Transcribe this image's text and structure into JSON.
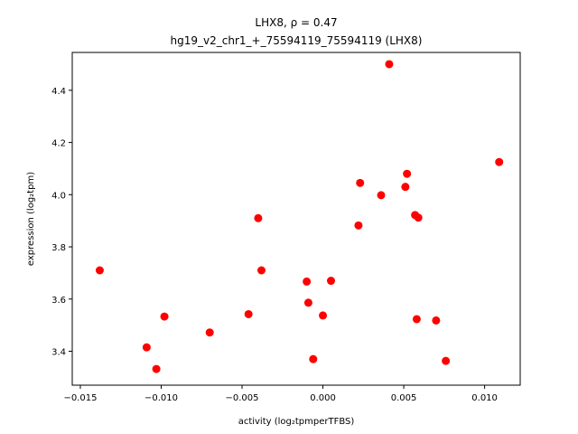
{
  "chart_data": {
    "type": "scatter",
    "title_line1": "LHX8, ρ = 0.47",
    "title_line2": "hg19_v2_chr1_+_75594119_75594119 (LHX8)",
    "xlabel": "activity (log₂tpmperTFBS)",
    "ylabel": "expression (log₂tpm)",
    "xlim": [
      -0.0155,
      0.0122
    ],
    "ylim": [
      3.27,
      4.545
    ],
    "xticks": [
      -0.015,
      -0.01,
      -0.005,
      0.0,
      0.005,
      0.01
    ],
    "xtick_labels": [
      "−0.015",
      "−0.010",
      "−0.005",
      "0.000",
      "0.005",
      "0.010"
    ],
    "yticks": [
      3.4,
      3.6,
      3.8,
      4.0,
      4.2,
      4.4
    ],
    "ytick_labels": [
      "3.4",
      "3.6",
      "3.8",
      "4.0",
      "4.2",
      "4.4"
    ],
    "grid": false,
    "marker_color": "#ff0000",
    "points": [
      {
        "x": -0.0138,
        "y": 3.71
      },
      {
        "x": -0.0109,
        "y": 3.415
      },
      {
        "x": -0.0103,
        "y": 3.332
      },
      {
        "x": -0.0098,
        "y": 3.533
      },
      {
        "x": -0.007,
        "y": 3.472
      },
      {
        "x": -0.0046,
        "y": 3.542
      },
      {
        "x": -0.004,
        "y": 3.91
      },
      {
        "x": -0.0038,
        "y": 3.71
      },
      {
        "x": -0.001,
        "y": 3.667
      },
      {
        "x": -0.0009,
        "y": 3.586
      },
      {
        "x": -0.0006,
        "y": 3.37
      },
      {
        "x": 0.0,
        "y": 3.537
      },
      {
        "x": 0.0005,
        "y": 3.67
      },
      {
        "x": 0.0022,
        "y": 3.882
      },
      {
        "x": 0.0023,
        "y": 4.045
      },
      {
        "x": 0.0036,
        "y": 3.998
      },
      {
        "x": 0.0041,
        "y": 4.5
      },
      {
        "x": 0.0051,
        "y": 4.03
      },
      {
        "x": 0.0052,
        "y": 4.08
      },
      {
        "x": 0.0057,
        "y": 3.922
      },
      {
        "x": 0.0058,
        "y": 3.523
      },
      {
        "x": 0.0059,
        "y": 3.912
      },
      {
        "x": 0.007,
        "y": 3.518
      },
      {
        "x": 0.0076,
        "y": 3.363
      },
      {
        "x": 0.0109,
        "y": 4.125
      }
    ]
  }
}
